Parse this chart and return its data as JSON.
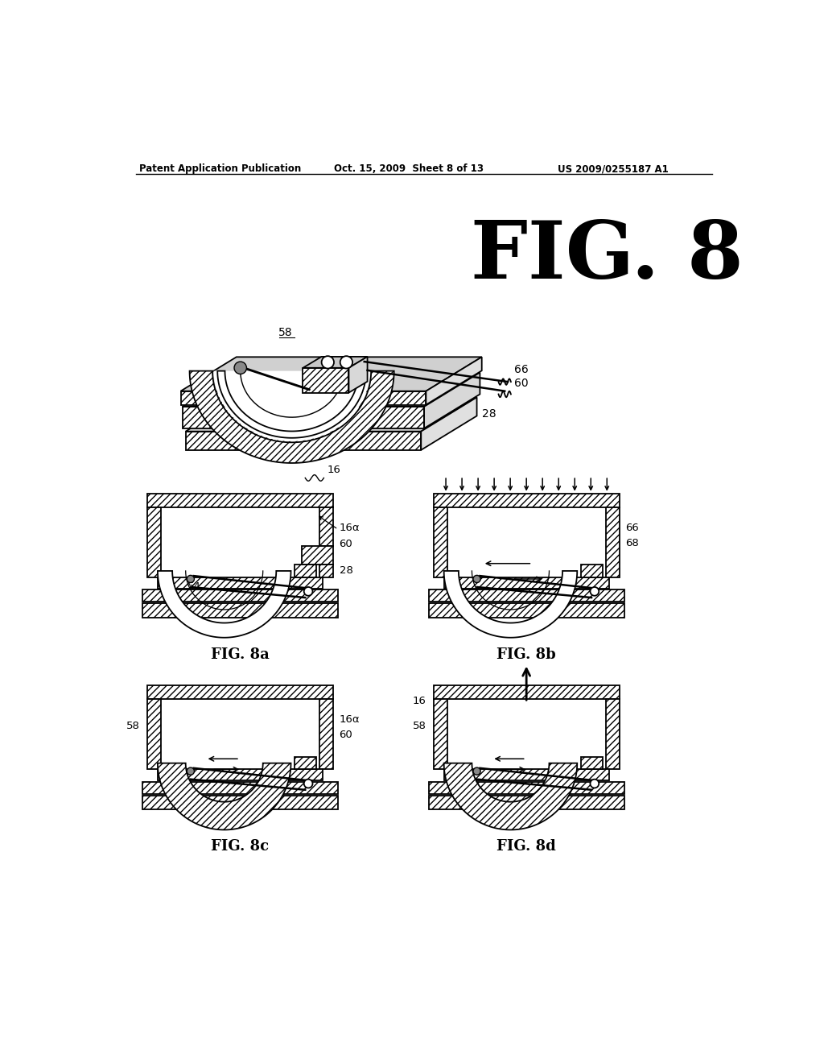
{
  "title": "FIG. 8",
  "header_left": "Patent Application Publication",
  "header_mid": "Oct. 15, 2009  Sheet 8 of 13",
  "header_right": "US 2009/0255187 A1",
  "background_color": "#ffffff",
  "line_color": "#000000"
}
